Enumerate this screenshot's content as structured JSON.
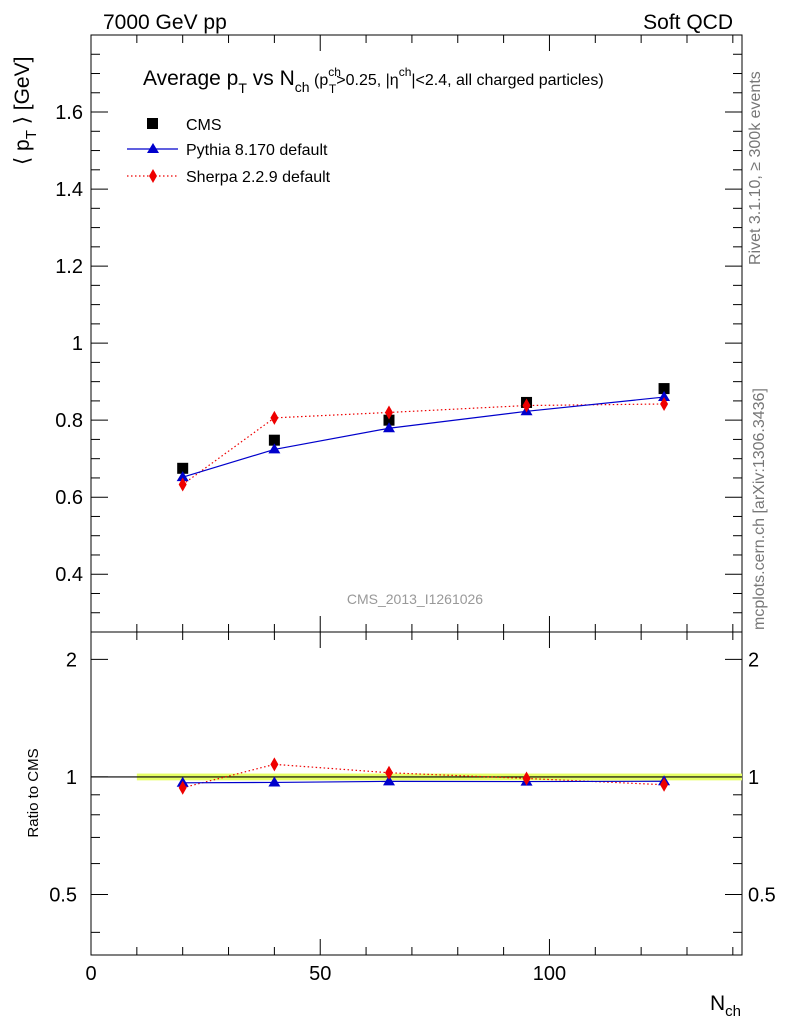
{
  "header": {
    "left": "7000 GeV pp",
    "right": "Soft QCD"
  },
  "side": {
    "rivet": "Rivet 3.1.10, ≥ 300k events",
    "mcplots": "mcplots.cern.ch [arXiv:1306.3436]"
  },
  "analysis_id": "CMS_2013_I1261026",
  "title": {
    "main": "Average p",
    "main_sub": "T",
    "vs": " vs N",
    "vs_sub": "ch",
    "cut_open": " (p",
    "cut_pt_sup": "ch",
    "cut_pt_sub": "T",
    "cut_mid": ">0.25, |η",
    "cut_eta_sup": "ch",
    "cut_end": "|<2.4, all charged particles)"
  },
  "ylabel": {
    "open": "⟨ p",
    "sub": "T",
    "close": " ⟩ [GeV]"
  },
  "ratio_ylabel": "Ratio to CMS",
  "xlabel": {
    "main": "N",
    "sub": "ch"
  },
  "colors": {
    "cms": "#000000",
    "pythia": "#0000cc",
    "sherpa": "#ee0000",
    "band": "#e6ff66"
  },
  "chart_data": [
    {
      "type": "scatter",
      "panel": "main",
      "xlim": [
        0,
        142
      ],
      "ylim": [
        0.25,
        1.8
      ],
      "yticks": [
        0.4,
        0.6,
        0.8,
        1,
        1.2,
        1.4,
        1.6
      ],
      "ytick_labels": [
        "0.4",
        "0.6",
        "0.8",
        "1",
        "1.2",
        "1.4",
        "1.6"
      ],
      "legend_position": "top-left",
      "series": [
        {
          "name": "CMS",
          "style": "marker-square",
          "x": [
            20,
            40,
            65,
            95,
            125
          ],
          "y": [
            0.675,
            0.748,
            0.8,
            0.846,
            0.882
          ]
        },
        {
          "name": "Pythia 8.170 default",
          "style": "line-triangle",
          "x": [
            20,
            40,
            65,
            95,
            125
          ],
          "y": [
            0.652,
            0.724,
            0.779,
            0.823,
            0.86
          ]
        },
        {
          "name": "Sherpa 2.2.9 default",
          "style": "dotted-diamond",
          "x": [
            20,
            40,
            65,
            95,
            125
          ],
          "y": [
            0.633,
            0.806,
            0.82,
            0.838,
            0.842
          ]
        }
      ]
    },
    {
      "type": "line",
      "panel": "ratio",
      "xlim": [
        0,
        142
      ],
      "ylim": [
        0.35,
        2.35
      ],
      "log_y": true,
      "yticks": [
        0.5,
        1,
        2
      ],
      "ytick_labels": [
        "0.5",
        "1",
        "2"
      ],
      "xticks": [
        0,
        50,
        100
      ],
      "xtick_labels": [
        "0",
        "50",
        "100"
      ],
      "band": {
        "x": [
          10,
          142
        ],
        "y": [
          0.98,
          1.02
        ]
      },
      "series": [
        {
          "name": "Pythia 8.170 default",
          "x": [
            20,
            40,
            65,
            95,
            125
          ],
          "y": [
            0.966,
            0.968,
            0.974,
            0.973,
            0.975
          ]
        },
        {
          "name": "Sherpa 2.2.9 default",
          "x": [
            20,
            40,
            65,
            95,
            125
          ],
          "y": [
            0.938,
            1.077,
            1.025,
            0.991,
            0.955
          ]
        }
      ]
    }
  ]
}
